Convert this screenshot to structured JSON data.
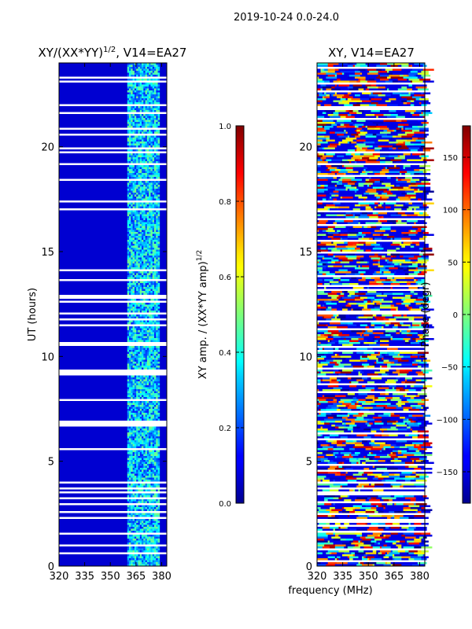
{
  "suptitle": "2019-10-24 0.0-24.0",
  "chart_data": [
    {
      "type": "heatmap",
      "title_main": "XY/(XX*YY)",
      "title_sup": "1/2",
      "title_tail": ", V14=EA27",
      "xlabel": "",
      "ylabel": "UT (hours)",
      "xlim": [
        320,
        383
      ],
      "ylim": [
        0,
        24
      ],
      "xticks": [
        320,
        335,
        350,
        365,
        380
      ],
      "yticks": [
        0,
        5,
        10,
        15,
        20
      ],
      "colorbar": {
        "label_main": "XY amp. / (XX*YY amp)",
        "label_sup": "1/2",
        "range": [
          0.0,
          1.0
        ],
        "ticks": [
          "0.0",
          "0.2",
          "0.4",
          "0.6",
          "0.8",
          "1.0"
        ],
        "colormap": "jet"
      },
      "description_values": "amplitude ratio mostly 0.0-0.1 (dark blue) across 320-362 MHz; elevated 0.3-0.5 values (cyan/green) in 362-380 MHz band"
    },
    {
      "type": "heatmap",
      "title": "XY, V14=EA27",
      "xlabel": "",
      "ylabel": "",
      "xlim": [
        320,
        383
      ],
      "ylim": [
        0,
        24
      ],
      "xticks": [
        320,
        335,
        350,
        365,
        380
      ],
      "yticks": [
        0,
        5,
        10,
        15,
        20
      ],
      "colorbar": {
        "label": "Phase (degr)",
        "range": [
          -180,
          180
        ],
        "ticks": [
          "−150",
          "−100",
          "−50",
          "0",
          "50",
          "100",
          "150"
        ],
        "colormap": "jet"
      },
      "description_values": "phase values spread across full -180 to 180 degree range, noisy"
    }
  ],
  "shared_xlabel": "frequency (MHz)"
}
